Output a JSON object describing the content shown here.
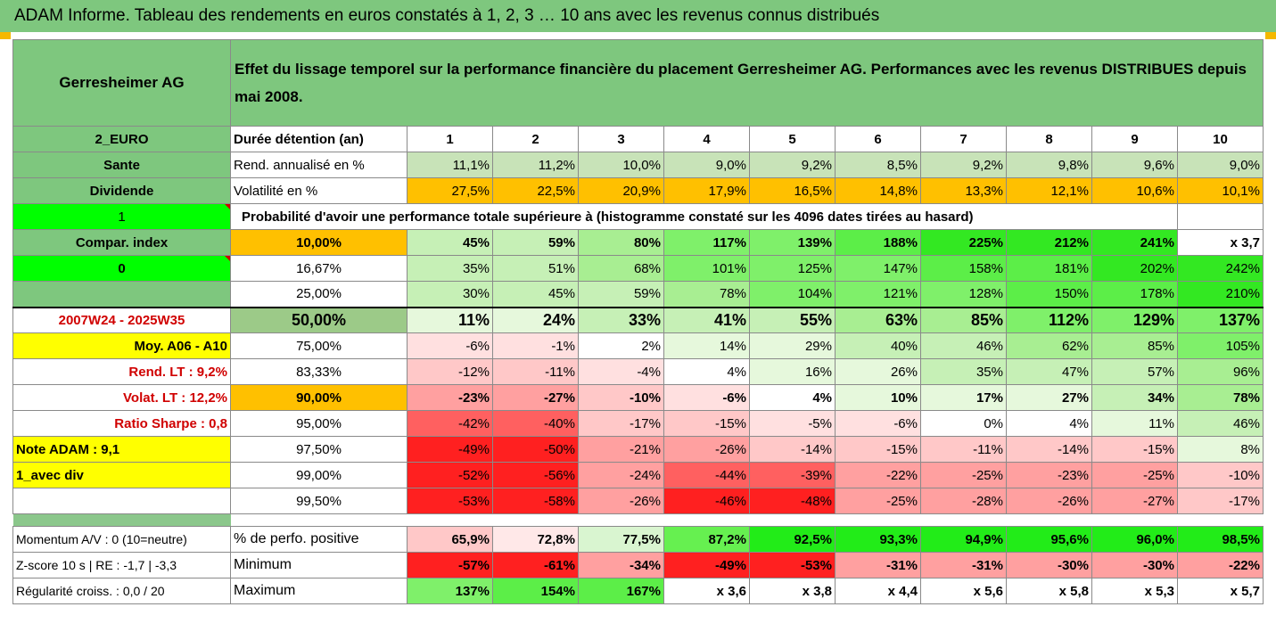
{
  "banner": "ADAM Informe. Tableau des rendements en euros constatés à 1, 2, 3 … 10 ans avec les revenus connus distribués",
  "header": {
    "company": "Gerresheimer AG",
    "description": "Effet du lissage temporel sur la performance financière du placement Gerresheimer AG. Performances avec les revenus DISTRIBUES depuis mai 2008."
  },
  "labels": [
    "2_EURO",
    "Sante",
    "Dividende",
    "1",
    "Compar. index",
    "0",
    "",
    "2007W24 - 2025W35",
    "Moy. A06 - A10",
    "Rend. LT :   9,2%",
    "Volat. LT :   12,2%",
    "Ratio Sharpe :   0,8",
    "Note ADAM : 9,1",
    "1_avec div",
    ""
  ],
  "row_titles": {
    "duree": "Durée détention (an)",
    "rend": "Rend. annualisé en %",
    "vol": "Volatilité en %",
    "prob": "Probabilité d'avoir une performance totale supérieure à (histogramme constaté sur les 4096 dates tirées au hasard)"
  },
  "years": [
    "1",
    "2",
    "3",
    "4",
    "5",
    "6",
    "7",
    "8",
    "9",
    "10"
  ],
  "rend": [
    "11,1%",
    "11,2%",
    "10,0%",
    "9,0%",
    "9,2%",
    "8,5%",
    "9,2%",
    "9,8%",
    "9,6%",
    "9,0%"
  ],
  "vol": [
    "27,5%",
    "22,5%",
    "20,9%",
    "17,9%",
    "16,5%",
    "14,8%",
    "13,3%",
    "12,1%",
    "10,6%",
    "10,1%"
  ],
  "thresholds": [
    "10,00%",
    "16,67%",
    "25,00%",
    "50,00%",
    "75,00%",
    "83,33%",
    "90,00%",
    "95,00%",
    "97,50%",
    "99,00%",
    "99,50%"
  ],
  "prob": [
    [
      "45%",
      "59%",
      "80%",
      "117%",
      "139%",
      "188%",
      "225%",
      "212%",
      "241%",
      "x 3,7"
    ],
    [
      "35%",
      "51%",
      "68%",
      "101%",
      "125%",
      "147%",
      "158%",
      "181%",
      "202%",
      "242%"
    ],
    [
      "30%",
      "45%",
      "59%",
      "78%",
      "104%",
      "121%",
      "128%",
      "150%",
      "178%",
      "210%"
    ],
    [
      "11%",
      "24%",
      "33%",
      "41%",
      "55%",
      "63%",
      "85%",
      "112%",
      "129%",
      "137%"
    ],
    [
      "-6%",
      "-1%",
      "2%",
      "14%",
      "29%",
      "40%",
      "46%",
      "62%",
      "85%",
      "105%"
    ],
    [
      "-12%",
      "-11%",
      "-4%",
      "4%",
      "16%",
      "26%",
      "35%",
      "47%",
      "57%",
      "96%"
    ],
    [
      "-23%",
      "-27%",
      "-10%",
      "-6%",
      "4%",
      "10%",
      "17%",
      "27%",
      "34%",
      "78%"
    ],
    [
      "-42%",
      "-40%",
      "-17%",
      "-15%",
      "-5%",
      "-6%",
      "0%",
      "4%",
      "11%",
      "46%"
    ],
    [
      "-49%",
      "-50%",
      "-21%",
      "-26%",
      "-14%",
      "-15%",
      "-11%",
      "-14%",
      "-15%",
      "8%"
    ],
    [
      "-52%",
      "-56%",
      "-24%",
      "-44%",
      "-39%",
      "-22%",
      "-25%",
      "-23%",
      "-25%",
      "-10%"
    ],
    [
      "-53%",
      "-58%",
      "-26%",
      "-46%",
      "-48%",
      "-25%",
      "-28%",
      "-26%",
      "-27%",
      "-17%"
    ]
  ],
  "bottom": [
    {
      "label": "Momentum A/V : 0 (10=neutre)",
      "title": "% de perfo. positive",
      "values": [
        "65,9%",
        "72,8%",
        "77,5%",
        "87,2%",
        "92,5%",
        "93,3%",
        "94,9%",
        "95,6%",
        "96,0%",
        "98,5%"
      ]
    },
    {
      "label": "Z-score 10 s  |  RE : -1,7  |  -3,3",
      "title": "Minimum",
      "values": [
        "-57%",
        "-61%",
        "-34%",
        "-49%",
        "-53%",
        "-31%",
        "-31%",
        "-30%",
        "-30%",
        "-22%"
      ]
    },
    {
      "label": "Régularité croiss. : 0,0 / 20",
      "title": "Maximum",
      "values": [
        "137%",
        "154%",
        "167%",
        "x 3,6",
        "x 3,8",
        "x 4,4",
        "x 5,6",
        "x 5,8",
        "x 5,3",
        "x 5,7"
      ]
    }
  ],
  "colors": {
    "header_green": "#7ec77e",
    "orange": "#ffc000",
    "yellow": "#ffff00",
    "bright_green": "#00ff00",
    "strong_red": "#ff0000"
  }
}
